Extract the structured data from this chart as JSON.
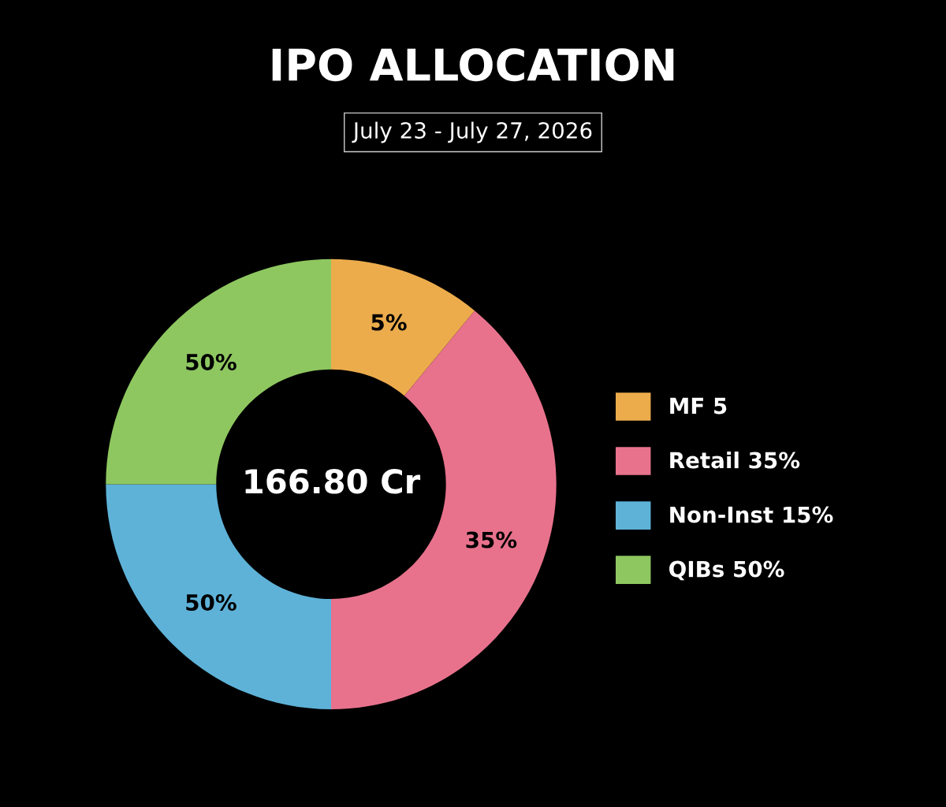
{
  "chart_data": {
    "type": "donut",
    "title": "IPO ALLOCATION",
    "subtitle": "July 23 - July 27, 2026",
    "categories": [
      "MF 5",
      "Retail 35%",
      "Non-Inst 15%",
      "QIBs 50%"
    ],
    "values": [
      11,
      39,
      25,
      25
    ],
    "colors": [
      "#ecac4c",
      "#e8728c",
      "#5eb2d8",
      "#8ec760"
    ],
    "annotations": [
      "166.80 Cr",
      "5%",
      "35%",
      "50%",
      "50%"
    ],
    "legend": "right"
  }
}
